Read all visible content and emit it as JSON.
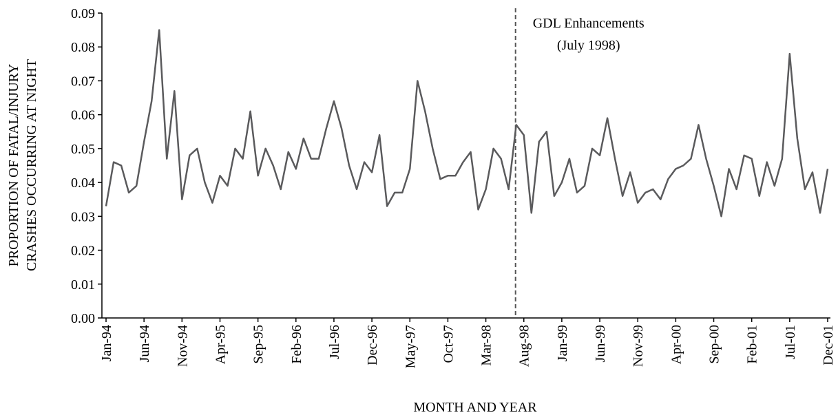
{
  "chart_data": {
    "type": "line",
    "x_label": "MONTH AND YEAR",
    "y_label": [
      "PROPORTION OF  FATAL/INJURY",
      "CRASHES OCCURRING AT NIGHT"
    ],
    "categories": [
      "Jan-94",
      null,
      null,
      null,
      null,
      "Jun-94",
      null,
      null,
      null,
      null,
      "Nov-94",
      null,
      null,
      null,
      null,
      "Apr-95",
      null,
      null,
      null,
      null,
      "Sep-95",
      null,
      null,
      null,
      null,
      "Feb-96",
      null,
      null,
      null,
      null,
      "Jul-96",
      null,
      null,
      null,
      null,
      "Dec-96",
      null,
      null,
      null,
      null,
      "May-97",
      null,
      null,
      null,
      null,
      "Oct-97",
      null,
      null,
      null,
      null,
      "Mar-98",
      null,
      null,
      null,
      null,
      "Aug-98",
      null,
      null,
      null,
      null,
      "Jan-99",
      null,
      null,
      null,
      null,
      "Jun-99",
      null,
      null,
      null,
      null,
      "Nov-99",
      null,
      null,
      null,
      null,
      "Apr-00",
      null,
      null,
      null,
      null,
      "Sep-00",
      null,
      null,
      null,
      null,
      "Feb-01",
      null,
      null,
      null,
      null,
      "Jul-01",
      null,
      null,
      null,
      null,
      "Dec-01"
    ],
    "series": [
      {
        "color": "#5a5a5c",
        "values": [
          0.033,
          0.046,
          0.045,
          0.037,
          0.039,
          0.052,
          0.064,
          0.085,
          0.047,
          0.067,
          0.035,
          0.048,
          0.05,
          0.04,
          0.034,
          0.042,
          0.039,
          0.05,
          0.047,
          0.061,
          0.042,
          0.05,
          0.045,
          0.038,
          0.049,
          0.044,
          0.053,
          0.047,
          0.047,
          0.056,
          0.064,
          0.056,
          0.045,
          0.038,
          0.046,
          0.043,
          0.054,
          0.033,
          0.037,
          0.037,
          0.044,
          0.07,
          0.061,
          0.05,
          0.041,
          0.042,
          0.042,
          0.046,
          0.049,
          0.032,
          0.038,
          0.05,
          0.047,
          0.038,
          0.057,
          0.054,
          0.031,
          0.052,
          0.055,
          0.036,
          0.04,
          0.047,
          0.037,
          0.039,
          0.05,
          0.048,
          0.059,
          0.047,
          0.036,
          0.043,
          0.034,
          0.037,
          0.038,
          0.035,
          0.041,
          0.044,
          0.045,
          0.047,
          0.057,
          0.047,
          0.039,
          0.03,
          0.044,
          0.038,
          0.048,
          0.047,
          0.036,
          0.046,
          0.039,
          0.047,
          0.078,
          0.053,
          0.038,
          0.043,
          0.031,
          0.044
        ]
      }
    ],
    "ylim": [
      0,
      0.09
    ],
    "yticks": [
      {
        "value": 0,
        "label": "0.00"
      },
      0.01,
      0.02,
      0.03,
      0.04,
      0.05,
      0.06,
      0.07,
      0.08,
      0.09
    ],
    "annotation": {
      "text": [
        "GDL Enhancements",
        "(July 1998)"
      ],
      "x_index": 54
    }
  }
}
